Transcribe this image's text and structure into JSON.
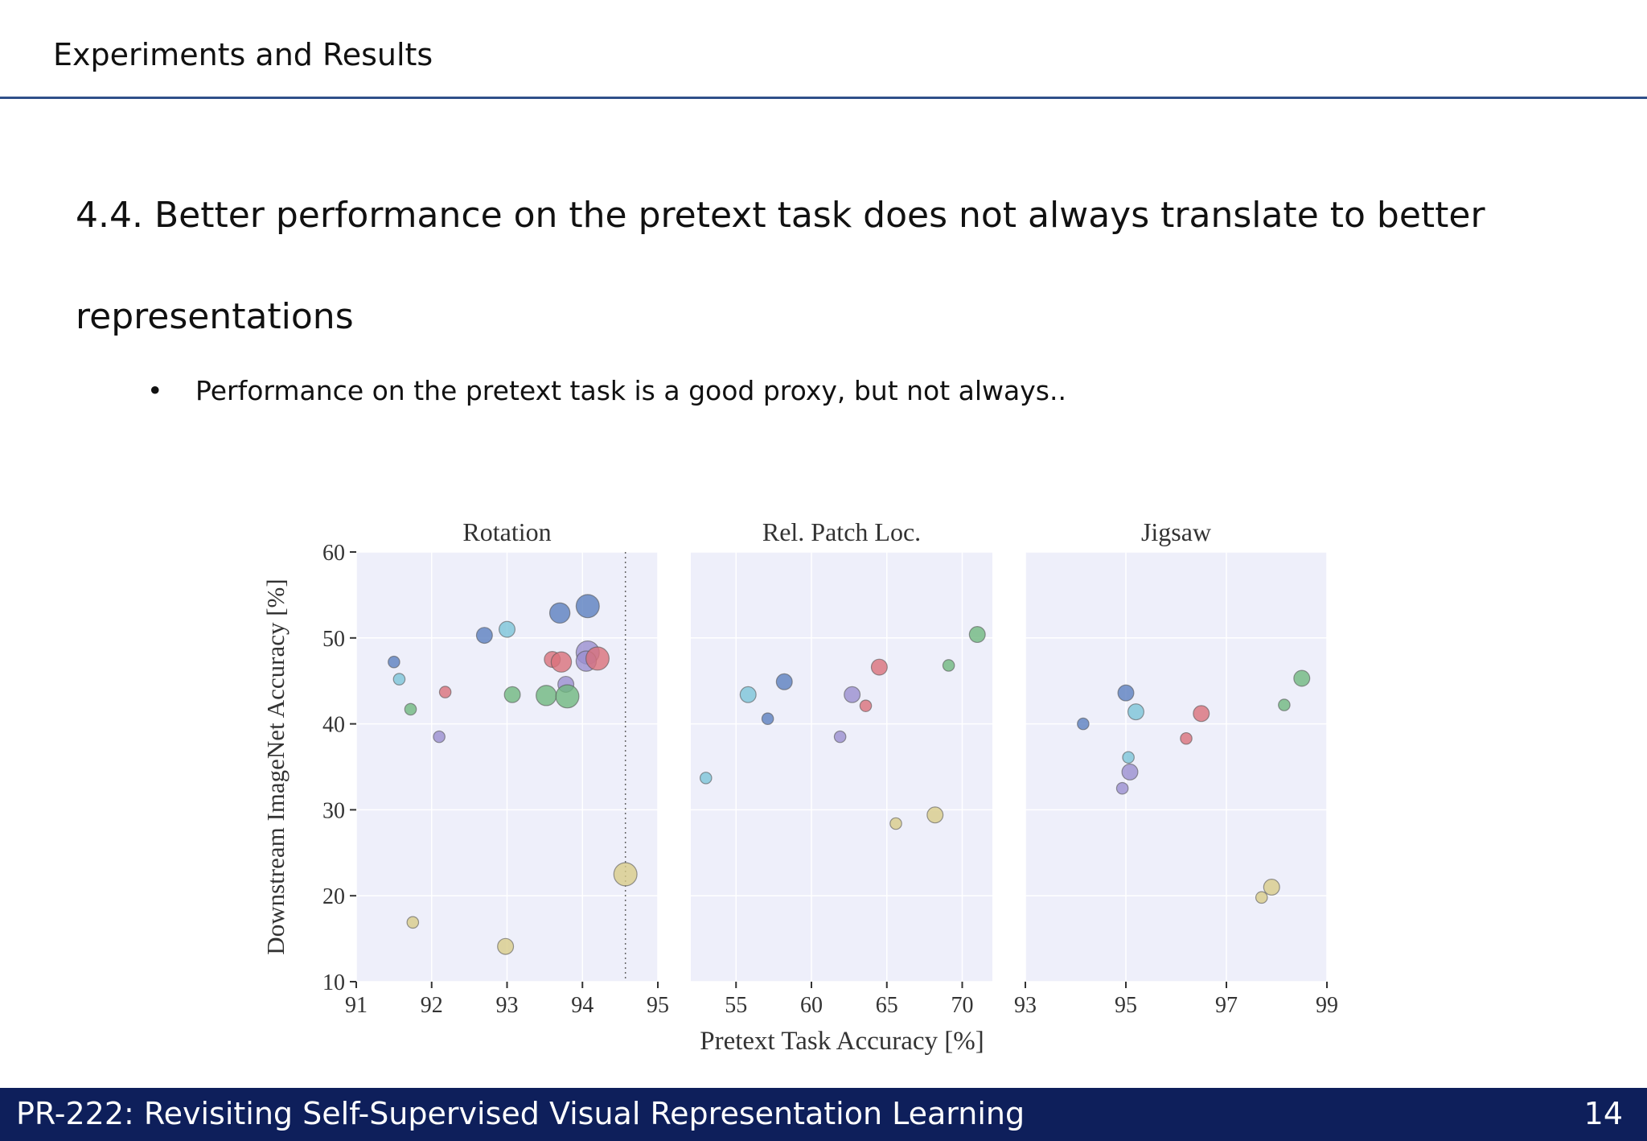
{
  "header": {
    "title": "Experiments and Results"
  },
  "slide": {
    "heading": "4.4. Better performance on the pretext task does not always translate to better representations",
    "bullets": [
      "Performance on the pretext task is a good proxy, but not always.."
    ]
  },
  "footer": {
    "text": "PR-222: Revisiting Self-Supervised Visual Representation Learning",
    "page_number": "14"
  },
  "colors": {
    "blue": "#5b7fbf",
    "cyan": "#7cc4d8",
    "green": "#6fb87f",
    "red": "#d9707a",
    "purple": "#9a8fd0",
    "yellow": "#d8cc8a",
    "panel_bg": "#eeeffa",
    "header_rule": "#2f4f8a",
    "footer_bg": "#0e1f5b"
  },
  "chart_data": {
    "type": "scatter",
    "ylabel": "Downstream ImageNet Accuracy [%]",
    "xlabel": "Pretext Task Accuracy [%]",
    "ylim": [
      10,
      60
    ],
    "yticks": [
      10,
      20,
      30,
      40,
      50,
      60
    ],
    "grid": true,
    "panels": [
      {
        "title": "Rotation",
        "xlim": [
          91,
          95
        ],
        "xticks": [
          91,
          92,
          93,
          94,
          95
        ],
        "vline": 94.57,
        "points": [
          {
            "x": 91.5,
            "y": 47.2,
            "c": "blue",
            "s": 0.8
          },
          {
            "x": 91.57,
            "y": 45.2,
            "c": "cyan",
            "s": 0.8
          },
          {
            "x": 91.72,
            "y": 41.7,
            "c": "green",
            "s": 0.8
          },
          {
            "x": 91.75,
            "y": 16.9,
            "c": "yellow",
            "s": 0.8
          },
          {
            "x": 92.1,
            "y": 38.5,
            "c": "purple",
            "s": 0.8
          },
          {
            "x": 92.18,
            "y": 43.7,
            "c": "red",
            "s": 0.8
          },
          {
            "x": 92.7,
            "y": 50.3,
            "c": "blue",
            "s": 1.1
          },
          {
            "x": 93.0,
            "y": 51.0,
            "c": "cyan",
            "s": 1.1
          },
          {
            "x": 93.07,
            "y": 43.4,
            "c": "green",
            "s": 1.1
          },
          {
            "x": 92.98,
            "y": 14.1,
            "c": "yellow",
            "s": 1.1
          },
          {
            "x": 93.52,
            "y": 43.3,
            "c": "green",
            "s": 1.4
          },
          {
            "x": 93.6,
            "y": 47.5,
            "c": "red",
            "s": 1.1
          },
          {
            "x": 93.7,
            "y": 52.9,
            "c": "blue",
            "s": 1.4
          },
          {
            "x": 93.72,
            "y": 47.2,
            "c": "red",
            "s": 1.4
          },
          {
            "x": 93.78,
            "y": 44.6,
            "c": "purple",
            "s": 1.1
          },
          {
            "x": 93.8,
            "y": 43.2,
            "c": "green",
            "s": 1.6
          },
          {
            "x": 94.07,
            "y": 53.7,
            "c": "blue",
            "s": 1.6
          },
          {
            "x": 94.07,
            "y": 48.3,
            "c": "purple",
            "s": 1.6
          },
          {
            "x": 94.05,
            "y": 47.3,
            "c": "purple",
            "s": 1.4
          },
          {
            "x": 94.2,
            "y": 47.6,
            "c": "red",
            "s": 1.6
          },
          {
            "x": 94.57,
            "y": 22.5,
            "c": "yellow",
            "s": 1.6
          }
        ]
      },
      {
        "title": "Rel. Patch Loc.",
        "xlim": [
          52,
          72
        ],
        "xticks": [
          55,
          60,
          65,
          70
        ],
        "points": [
          {
            "x": 53.0,
            "y": 33.7,
            "c": "cyan",
            "s": 0.8
          },
          {
            "x": 55.8,
            "y": 43.4,
            "c": "cyan",
            "s": 1.1
          },
          {
            "x": 57.1,
            "y": 40.6,
            "c": "blue",
            "s": 0.8
          },
          {
            "x": 58.2,
            "y": 44.9,
            "c": "blue",
            "s": 1.1
          },
          {
            "x": 61.9,
            "y": 38.5,
            "c": "purple",
            "s": 0.8
          },
          {
            "x": 62.7,
            "y": 43.4,
            "c": "purple",
            "s": 1.1
          },
          {
            "x": 63.6,
            "y": 42.1,
            "c": "red",
            "s": 0.8
          },
          {
            "x": 64.5,
            "y": 46.6,
            "c": "red",
            "s": 1.1
          },
          {
            "x": 65.6,
            "y": 28.4,
            "c": "yellow",
            "s": 0.8
          },
          {
            "x": 68.2,
            "y": 29.4,
            "c": "yellow",
            "s": 1.1
          },
          {
            "x": 69.1,
            "y": 46.8,
            "c": "green",
            "s": 0.8
          },
          {
            "x": 71.0,
            "y": 50.4,
            "c": "green",
            "s": 1.1
          }
        ]
      },
      {
        "title": "Jigsaw",
        "xlim": [
          93,
          99
        ],
        "xticks": [
          93,
          95,
          97,
          99
        ],
        "points": [
          {
            "x": 94.15,
            "y": 40.0,
            "c": "blue",
            "s": 0.8
          },
          {
            "x": 95.0,
            "y": 43.6,
            "c": "blue",
            "s": 1.1
          },
          {
            "x": 95.05,
            "y": 36.1,
            "c": "cyan",
            "s": 0.8
          },
          {
            "x": 95.2,
            "y": 41.4,
            "c": "cyan",
            "s": 1.1
          },
          {
            "x": 94.93,
            "y": 32.5,
            "c": "purple",
            "s": 0.8
          },
          {
            "x": 95.08,
            "y": 34.4,
            "c": "purple",
            "s": 1.1
          },
          {
            "x": 96.2,
            "y": 38.3,
            "c": "red",
            "s": 0.8
          },
          {
            "x": 96.5,
            "y": 41.2,
            "c": "red",
            "s": 1.1
          },
          {
            "x": 97.7,
            "y": 19.8,
            "c": "yellow",
            "s": 0.8
          },
          {
            "x": 97.9,
            "y": 21.0,
            "c": "yellow",
            "s": 1.1
          },
          {
            "x": 98.15,
            "y": 42.2,
            "c": "green",
            "s": 0.8
          },
          {
            "x": 98.5,
            "y": 45.3,
            "c": "green",
            "s": 1.1
          }
        ]
      }
    ]
  }
}
